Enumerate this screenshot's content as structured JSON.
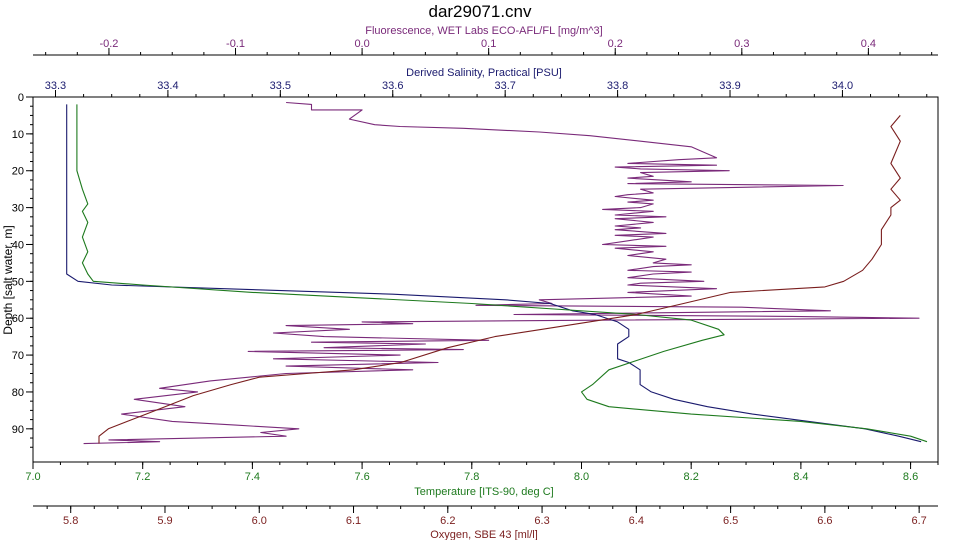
{
  "chart_data": {
    "type": "line",
    "title": "dar29071.cnv",
    "grid": false,
    "axes": {
      "depth": {
        "label": "Depth [salt water, m]",
        "lim": [
          0,
          99
        ],
        "ticks": [
          "0",
          "10",
          "20",
          "30",
          "40",
          "50",
          "60",
          "70",
          "80",
          "90"
        ],
        "reversed": true
      },
      "fluorescence": {
        "label": "Fluorescence, WET Labs ECO-AFL/FL [mg/m^3]",
        "lim": [
          -0.26,
          0.455
        ],
        "ticks": [
          "-0.2",
          "-0.1",
          "0.0",
          "0.1",
          "0.2",
          "0.3",
          "0.4"
        ],
        "color": "#7a2a7a"
      },
      "salinity": {
        "label": "Derived Salinity, Practical [PSU]",
        "lim": [
          33.28,
          34.085
        ],
        "ticks": [
          "33.3",
          "33.4",
          "33.5",
          "33.6",
          "33.7",
          "33.8",
          "33.9",
          "34.0"
        ],
        "color": "#1a1a6e"
      },
      "temperature": {
        "label": "Temperature [ITS-90, deg C]",
        "lim": [
          7.0,
          8.65
        ],
        "ticks": [
          "7.0",
          "7.2",
          "7.4",
          "7.6",
          "7.8",
          "8.0",
          "8.2",
          "8.4",
          "8.6"
        ],
        "color": "#1e7a1e"
      },
      "oxygen": {
        "label": "Oxygen, SBE 43 [ml/l]",
        "lim": [
          5.76,
          6.72
        ],
        "ticks": [
          "5.8",
          "5.9",
          "6.0",
          "6.1",
          "6.2",
          "6.3",
          "6.4",
          "6.5",
          "6.6",
          "6.7"
        ],
        "color": "#7a1e1e"
      }
    },
    "series": [
      {
        "axis": "fluorescence",
        "color": "#7a2a7a",
        "points": [
          [
            -0.06,
            1.5
          ],
          [
            -0.04,
            2
          ],
          [
            -0.04,
            3.5
          ],
          [
            0.0,
            3.5
          ],
          [
            -0.01,
            6
          ],
          [
            0.01,
            7.5
          ],
          [
            0.03,
            8
          ],
          [
            0.08,
            8.5
          ],
          [
            0.14,
            9.5
          ],
          [
            0.18,
            10.5
          ],
          [
            0.22,
            12
          ],
          [
            0.26,
            13.5
          ],
          [
            0.27,
            15
          ],
          [
            0.28,
            16.5
          ],
          [
            0.25,
            17
          ],
          [
            0.21,
            18
          ],
          [
            0.28,
            18.5
          ],
          [
            0.2,
            19
          ],
          [
            0.22,
            19.5
          ],
          [
            0.29,
            20
          ],
          [
            0.22,
            20.5
          ],
          [
            0.23,
            21.5
          ],
          [
            0.21,
            22
          ],
          [
            0.26,
            23
          ],
          [
            0.21,
            23.5
          ],
          [
            0.38,
            24
          ],
          [
            0.22,
            25
          ],
          [
            0.23,
            26
          ],
          [
            0.21,
            26.5
          ],
          [
            0.2,
            27
          ],
          [
            0.23,
            28
          ],
          [
            0.21,
            28.5
          ],
          [
            0.23,
            29
          ],
          [
            0.22,
            30
          ],
          [
            0.19,
            30.5
          ],
          [
            0.23,
            31
          ],
          [
            0.2,
            32
          ],
          [
            0.24,
            32.5
          ],
          [
            0.2,
            33
          ],
          [
            0.23,
            34
          ],
          [
            0.2,
            35
          ],
          [
            0.22,
            35.5
          ],
          [
            0.2,
            36
          ],
          [
            0.24,
            37
          ],
          [
            0.2,
            37.5
          ],
          [
            0.23,
            38
          ],
          [
            0.21,
            39
          ],
          [
            0.19,
            40
          ],
          [
            0.24,
            40.5
          ],
          [
            0.2,
            41
          ],
          [
            0.23,
            42
          ],
          [
            0.21,
            43
          ],
          [
            0.24,
            44
          ],
          [
            0.23,
            45
          ],
          [
            0.26,
            45.5
          ],
          [
            0.23,
            46
          ],
          [
            0.21,
            47
          ],
          [
            0.26,
            47.5
          ],
          [
            0.23,
            48
          ],
          [
            0.21,
            49
          ],
          [
            0.27,
            50
          ],
          [
            0.22,
            50.5
          ],
          [
            0.21,
            51
          ],
          [
            0.28,
            52
          ],
          [
            0.21,
            53
          ],
          [
            0.26,
            54
          ],
          [
            0.2,
            54.5
          ],
          [
            0.14,
            55
          ],
          [
            0.15,
            56
          ],
          [
            0.09,
            56.5
          ],
          [
            0.3,
            57
          ],
          [
            0.37,
            58
          ],
          [
            0.12,
            59
          ],
          [
            0.34,
            59.5
          ],
          [
            0.44,
            60
          ],
          [
            0.2,
            60.5
          ],
          [
            0.0,
            61
          ],
          [
            0.04,
            61.5
          ],
          [
            -0.06,
            62
          ],
          [
            -0.01,
            63
          ],
          [
            -0.07,
            64
          ],
          [
            -0.03,
            65
          ],
          [
            0.1,
            66
          ],
          [
            -0.04,
            66.5
          ],
          [
            0.05,
            67
          ],
          [
            -0.03,
            68
          ],
          [
            0.08,
            68.5
          ],
          [
            -0.09,
            69
          ],
          [
            0.03,
            70
          ],
          [
            -0.07,
            71
          ],
          [
            0.06,
            72
          ],
          [
            -0.06,
            73
          ],
          [
            0.04,
            74
          ],
          [
            -0.06,
            75
          ],
          [
            -0.12,
            77
          ],
          [
            -0.16,
            79
          ],
          [
            -0.13,
            80
          ],
          [
            -0.18,
            82
          ],
          [
            -0.14,
            84
          ],
          [
            -0.19,
            86
          ],
          [
            -0.15,
            88
          ],
          [
            -0.1,
            89
          ],
          [
            -0.05,
            90
          ],
          [
            -0.08,
            91
          ],
          [
            -0.06,
            92
          ],
          [
            -0.2,
            93
          ],
          [
            -0.16,
            93.5
          ],
          [
            -0.22,
            94
          ]
        ]
      },
      {
        "axis": "salinity",
        "color": "#1a1a6e",
        "points": [
          [
            33.31,
            2
          ],
          [
            33.31,
            5
          ],
          [
            33.31,
            10
          ],
          [
            33.31,
            15
          ],
          [
            33.31,
            20
          ],
          [
            33.31,
            25
          ],
          [
            33.31,
            30
          ],
          [
            33.31,
            35
          ],
          [
            33.31,
            40
          ],
          [
            33.31,
            45
          ],
          [
            33.31,
            48
          ],
          [
            33.32,
            50
          ],
          [
            33.35,
            51
          ],
          [
            33.45,
            52
          ],
          [
            33.6,
            53.5
          ],
          [
            33.7,
            55
          ],
          [
            33.74,
            56
          ],
          [
            33.76,
            58
          ],
          [
            33.78,
            59
          ],
          [
            33.8,
            61
          ],
          [
            33.81,
            63
          ],
          [
            33.81,
            65
          ],
          [
            33.8,
            67
          ],
          [
            33.8,
            69
          ],
          [
            33.8,
            71
          ],
          [
            33.81,
            72
          ],
          [
            33.82,
            74
          ],
          [
            33.82,
            76
          ],
          [
            33.82,
            78
          ],
          [
            33.83,
            80
          ],
          [
            33.85,
            82
          ],
          [
            33.88,
            84
          ],
          [
            33.92,
            86
          ],
          [
            33.97,
            88
          ],
          [
            34.02,
            90
          ],
          [
            34.05,
            92
          ],
          [
            34.07,
            93.5
          ]
        ]
      },
      {
        "axis": "temperature",
        "color": "#1e7a1e",
        "points": [
          [
            7.08,
            2
          ],
          [
            7.08,
            10
          ],
          [
            7.08,
            20
          ],
          [
            7.09,
            25
          ],
          [
            7.1,
            29
          ],
          [
            7.09,
            31
          ],
          [
            7.1,
            34
          ],
          [
            7.09,
            38
          ],
          [
            7.1,
            42
          ],
          [
            7.09,
            45
          ],
          [
            7.1,
            48
          ],
          [
            7.11,
            50
          ],
          [
            7.2,
            51
          ],
          [
            7.4,
            53
          ],
          [
            7.6,
            54.5
          ],
          [
            7.8,
            56
          ],
          [
            7.95,
            57.5
          ],
          [
            8.1,
            59
          ],
          [
            8.2,
            60.5
          ],
          [
            8.25,
            63
          ],
          [
            8.26,
            64.5
          ],
          [
            8.22,
            66
          ],
          [
            8.15,
            69
          ],
          [
            8.05,
            74
          ],
          [
            8.02,
            78
          ],
          [
            8.0,
            80
          ],
          [
            8.01,
            82
          ],
          [
            8.05,
            84
          ],
          [
            8.2,
            86
          ],
          [
            8.4,
            88
          ],
          [
            8.52,
            90
          ],
          [
            8.6,
            92
          ],
          [
            8.63,
            93.5
          ]
        ]
      },
      {
        "axis": "oxygen",
        "color": "#7a1e1e",
        "points": [
          [
            6.68,
            5
          ],
          [
            6.67,
            8
          ],
          [
            6.68,
            12
          ],
          [
            6.67,
            18
          ],
          [
            6.68,
            22
          ],
          [
            6.67,
            25
          ],
          [
            6.68,
            28
          ],
          [
            6.67,
            30
          ],
          [
            6.67,
            32
          ],
          [
            6.66,
            36
          ],
          [
            6.66,
            40
          ],
          [
            6.65,
            44
          ],
          [
            6.64,
            47
          ],
          [
            6.62,
            50
          ],
          [
            6.6,
            51.5
          ],
          [
            6.5,
            53
          ],
          [
            6.45,
            56
          ],
          [
            6.4,
            59
          ],
          [
            6.35,
            61
          ],
          [
            6.3,
            63
          ],
          [
            6.25,
            65
          ],
          [
            6.2,
            68
          ],
          [
            6.15,
            72
          ],
          [
            6.1,
            74
          ],
          [
            6.05,
            75
          ],
          [
            6.0,
            76
          ],
          [
            5.97,
            78
          ],
          [
            5.93,
            81
          ],
          [
            5.9,
            84
          ],
          [
            5.88,
            86
          ],
          [
            5.86,
            88
          ],
          [
            5.84,
            90
          ],
          [
            5.83,
            92
          ],
          [
            5.83,
            94
          ]
        ]
      }
    ]
  }
}
